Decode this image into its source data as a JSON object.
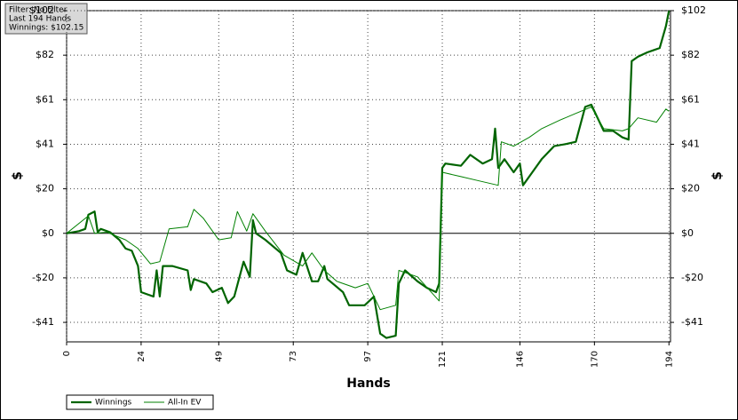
{
  "chart_data": {
    "type": "line",
    "info": [
      "Filter: No Filter",
      "Last  194 Hands",
      "Winnings: $102.15"
    ],
    "x_label": "Hands",
    "y_label": "$",
    "y2_label": "$",
    "xlim": [
      0,
      194.5
    ],
    "xticks": [
      0,
      24,
      49,
      73,
      97,
      121,
      146,
      170,
      194
    ],
    "ylim": [
      -49.8,
      102.15
    ],
    "yticks": [
      {
        "value": 102.15,
        "label": "$102"
      },
      {
        "value": 81.72,
        "label": "$82"
      },
      {
        "value": 61.29,
        "label": "$61"
      },
      {
        "value": 40.86,
        "label": "$41"
      },
      {
        "value": 20.43,
        "label": "$20"
      },
      {
        "value": 0,
        "label": "$0"
      },
      {
        "value": -20.43,
        "label": "-$20"
      },
      {
        "value": -40.86,
        "label": "-$41"
      }
    ],
    "grid": true,
    "legend": "bottom-left",
    "series": [
      {
        "name": "Winnings",
        "color": "#006400",
        "width": 2.2,
        "x": [
          0,
          4,
          6,
          7,
          9,
          10,
          11,
          14,
          17,
          19,
          21,
          23,
          24,
          26,
          28,
          29,
          30,
          31,
          34,
          39,
          40,
          41,
          45,
          47,
          50,
          52,
          54,
          57,
          59,
          60,
          61,
          64,
          69,
          71,
          74,
          76,
          79,
          81,
          83,
          84,
          89,
          91,
          96,
          99,
          101,
          103,
          106,
          107,
          109,
          113,
          116,
          119,
          120,
          121,
          122,
          127,
          130,
          134,
          137,
          138,
          139,
          141,
          144,
          146,
          147,
          150,
          153,
          157,
          161,
          164,
          167,
          169,
          173,
          176,
          179,
          181,
          182,
          184,
          187,
          189,
          191,
          193,
          194
        ],
        "values": [
          0,
          1,
          2,
          8.5,
          10,
          0.5,
          2,
          0.5,
          -3,
          -7,
          -8,
          -15,
          -27,
          -28,
          -29,
          -17,
          -29,
          -15,
          -15,
          -17,
          -26,
          -21,
          -23,
          -27,
          -25,
          -32,
          -29,
          -13,
          -20,
          6,
          0,
          -3,
          -9,
          -17,
          -19,
          -9,
          -22,
          -22,
          -15,
          -21,
          -27,
          -33,
          -33,
          -29,
          -46,
          -48,
          -47,
          -23,
          -17,
          -22,
          -25,
          -27,
          -23,
          30,
          32,
          31,
          36,
          32,
          34,
          48,
          30,
          34,
          28,
          32,
          22,
          28,
          34,
          40,
          41,
          42,
          58,
          59,
          47,
          47,
          44,
          43,
          79,
          81,
          83,
          84,
          85,
          95,
          102.15
        ]
      },
      {
        "name": "All-In EV",
        "color": "#008000",
        "width": 1,
        "x": [
          0,
          7,
          9,
          13,
          19,
          23,
          27,
          30,
          33,
          39,
          41,
          44,
          47,
          49,
          53,
          55,
          58,
          60,
          64,
          70,
          76,
          79,
          83,
          87,
          93,
          97,
          101,
          106,
          107,
          113,
          120,
          121,
          127,
          133,
          139,
          140,
          144,
          149,
          153,
          159,
          164,
          169,
          173,
          179,
          181,
          184,
          190,
          193,
          194
        ],
        "values": [
          0,
          8,
          0,
          0.5,
          -3,
          -7,
          -14,
          -13,
          2,
          3,
          11,
          7,
          1,
          -3,
          -2,
          10,
          1,
          9,
          1,
          -10,
          -15,
          -9,
          -17,
          -22,
          -25,
          -23,
          -35,
          -33,
          -17,
          -20,
          -31,
          28,
          26,
          24,
          22,
          42,
          40,
          44,
          48,
          52,
          55,
          58,
          48,
          47,
          48,
          53,
          51,
          57,
          56
        ]
      }
    ]
  }
}
